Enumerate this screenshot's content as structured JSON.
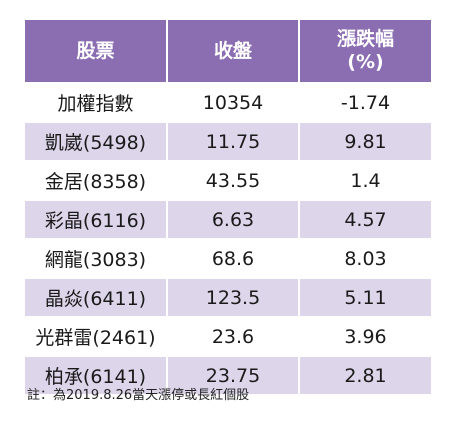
{
  "table": {
    "headers": {
      "stock": "股票",
      "close": "收盤",
      "change_line1": "漲跌幅",
      "change_line2": "(%)"
    },
    "rows": [
      {
        "stock": "加權指數",
        "close": "10354",
        "change": "-1.74"
      },
      {
        "stock": "凱崴(5498)",
        "close": "11.75",
        "change": "9.81"
      },
      {
        "stock": "金居(8358)",
        "close": "43.55",
        "change": "1.4"
      },
      {
        "stock": "彩晶(6116)",
        "close": "6.63",
        "change": "4.57"
      },
      {
        "stock": "網龍(3083)",
        "close": "68.6",
        "change": "8.03"
      },
      {
        "stock": "晶焱(6411)",
        "close": "123.5",
        "change": "5.11"
      },
      {
        "stock": "光群雷(2461)",
        "close": "23.6",
        "change": "3.96"
      },
      {
        "stock": "柏承(6141)",
        "close": "23.75",
        "change": "2.81"
      }
    ]
  },
  "note": "註：為2019.8.26當天漲停或長紅個股",
  "colors": {
    "header_bg": "#8b6db2",
    "alt_row_bg": "#ddd5ea"
  }
}
